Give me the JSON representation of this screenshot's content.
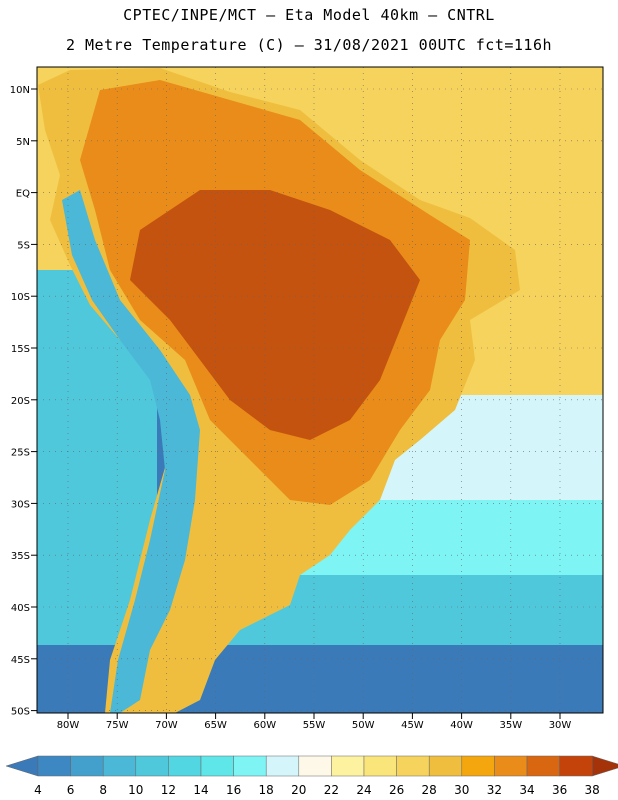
{
  "header": {
    "line1": "CPTEC/INPE/MCT –  Eta Model 40km – CNTRL",
    "line2": "2 Metre Temperature (C) – 31/08/2021 00UTC fct=116h"
  },
  "map": {
    "lat_labels": [
      "10N",
      "5N",
      "EQ",
      "5S",
      "10S",
      "15S",
      "20S",
      "25S",
      "30S",
      "35S",
      "40S",
      "45S",
      "50S"
    ],
    "lon_labels": [
      "80W",
      "75W",
      "70W",
      "65W",
      "60W",
      "55W",
      "50W",
      "45W",
      "40W",
      "35W",
      "30W"
    ]
  },
  "colorbar": {
    "labels": [
      "4",
      "6",
      "8",
      "10",
      "12",
      "14",
      "16",
      "18",
      "20",
      "22",
      "24",
      "26",
      "28",
      "30",
      "32",
      "34",
      "36",
      "38"
    ],
    "colors": [
      "#3a7ab8",
      "#3d88c2",
      "#43a0cc",
      "#4ab8d6",
      "#4fc8dc",
      "#52d6e2",
      "#5ee6e8",
      "#7ef4f4",
      "#d4f6fb",
      "#fef8e8",
      "#fdf2a0",
      "#fae57a",
      "#f5d35c",
      "#efbe3e",
      "#f4a60e",
      "#e98c1a",
      "#d96610",
      "#c3430a",
      "#a4330a"
    ],
    "field_colors": {
      "ocean_deep": "#3a7ab8",
      "ocean_mid": "#4fc8dc",
      "ocean_light": "#7ef4f4",
      "ocean_pale": "#d4f6fb",
      "ocean_warm": "#f5d35c",
      "land_hot": "#c3530e",
      "land_warm": "#e98c1a",
      "land_mild": "#efbe3e",
      "andes_cold": "#4ab8d6"
    }
  }
}
